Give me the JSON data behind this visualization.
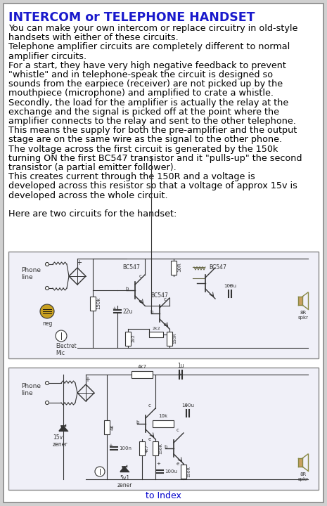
{
  "title": "INTERCOM or TELEPHONE HANDSET",
  "title_color": "#1a1aCC",
  "body_lines": [
    "You can make your own intercom or replace circuitry in old-style",
    "handsets with either of these circuits.",
    "Telephone amplifier circuits are completely different to normal",
    "amplifier circuits.",
    "For a start, they have very high negative feedback to prevent",
    "\"whistle\" and in telephone-speak the circuit is designed so",
    "sounds from the earpiece (receiver) are not picked up by the",
    "mouthpiece (microphone) and amplified to crate a whistle.",
    "Secondly, the load for the amplifier is actually the relay at the",
    "exchange and the signal is picked off at the point where the",
    "amplifier connects to the relay and sent to the other telephone.",
    "This means the supply for both the pre-amplifier and the output",
    "stage are on the same wire as the signal to the other phone.",
    "The voltage across the first circuit is generated by the 150k",
    "turning ON the first BC547 transistor and it \"pulls-up\" the second",
    "transistor (a partial emitter follower).",
    "This creates current through the 150R and a voltage is",
    "developed across this resistor so that a voltage of approx 15v is",
    "developed across the whole circuit.",
    "",
    "Here are two circuits for the handset:"
  ],
  "bottom_link": "to Index",
  "bottom_link_color": "#0000CC",
  "page_bg": "#FFFFFF",
  "outer_bg": "#D0D0D0",
  "border_color": "#888888",
  "text_color": "#000000",
  "body_fontsize": 9.2,
  "title_fontsize": 12.5
}
